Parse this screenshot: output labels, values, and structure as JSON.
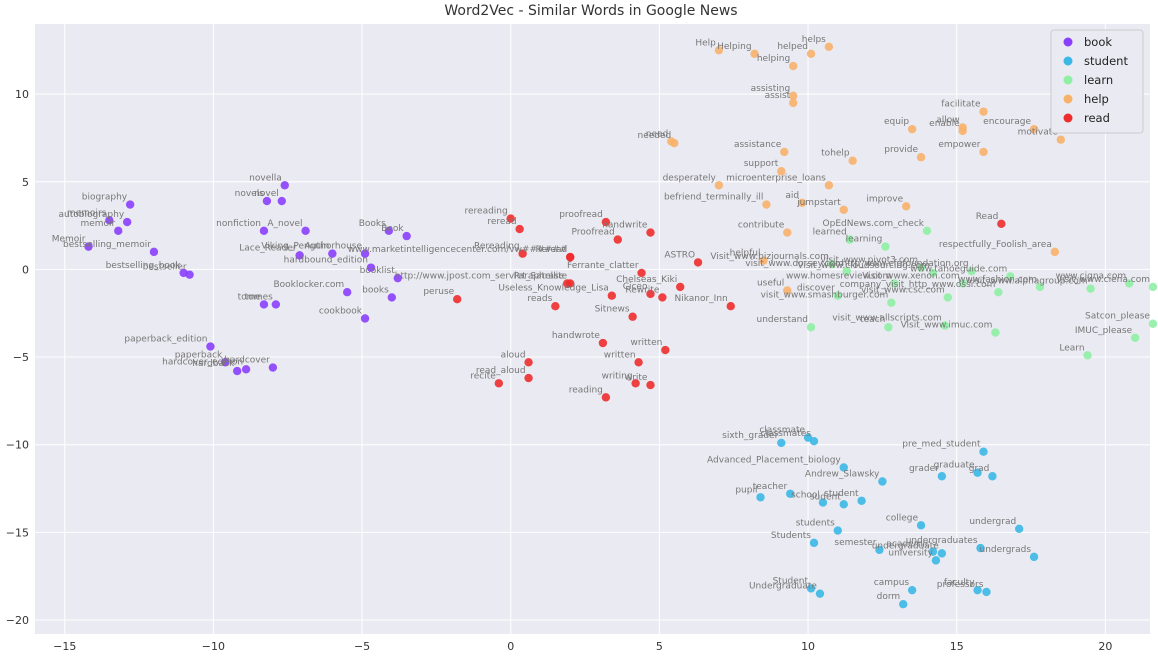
{
  "chart_data": {
    "type": "scatter",
    "title": "Word2Vec - Similar Words in Google News",
    "xlabel": "",
    "ylabel": "",
    "xlim": [
      -16,
      21.5
    ],
    "ylim": [
      -20.8,
      14.0
    ],
    "xticks": [
      -15,
      -10,
      -5,
      0,
      5,
      10,
      15,
      20
    ],
    "yticks": [
      -20,
      -15,
      -10,
      -5,
      0,
      5,
      10
    ],
    "grid": true,
    "background": "#eaeaf2",
    "legend_position": "top-right",
    "series": [
      {
        "name": "book",
        "color": "#8a3ffc",
        "points": [
          {
            "label": "biography",
            "x": -12.8,
            "y": 3.7
          },
          {
            "label": "memoirs",
            "x": -13.5,
            "y": 2.8
          },
          {
            "label": "autobiography",
            "x": -12.9,
            "y": 2.7
          },
          {
            "label": "memoir",
            "x": -13.2,
            "y": 2.2
          },
          {
            "label": "Memoir",
            "x": -14.2,
            "y": 1.3
          },
          {
            "label": "bestselling_memoir",
            "x": -12.0,
            "y": 1.0
          },
          {
            "label": "bestselling_book",
            "x": -11.0,
            "y": -0.2
          },
          {
            "label": "bestseller",
            "x": -10.8,
            "y": -0.3
          },
          {
            "label": "novella",
            "x": -7.6,
            "y": 4.8
          },
          {
            "label": "novel",
            "x": -7.7,
            "y": 3.9
          },
          {
            "label": "novels",
            "x": -8.2,
            "y": 3.9
          },
          {
            "label": "nonfiction",
            "x": -8.3,
            "y": 2.2
          },
          {
            "label": "A_novel",
            "x": -6.9,
            "y": 2.2
          },
          {
            "label": "Lace_Reader",
            "x": -7.1,
            "y": 0.8
          },
          {
            "label": "Viking_Penguin",
            "x": -6.0,
            "y": 0.9
          },
          {
            "label": "Authorhouse",
            "x": -4.9,
            "y": 0.9
          },
          {
            "label": "Booklocker.com",
            "x": -5.5,
            "y": -1.3
          },
          {
            "label": "hardbound_edition",
            "x": -4.7,
            "y": 0.1
          },
          {
            "label": "Books",
            "x": -4.1,
            "y": 2.2
          },
          {
            "label": "Book",
            "x": -3.5,
            "y": 1.9
          },
          {
            "label": "books",
            "x": -4.0,
            "y": -1.6
          },
          {
            "label": "booklist",
            "x": -3.8,
            "y": -0.5
          },
          {
            "label": "cookbook",
            "x": -4.9,
            "y": -2.8
          },
          {
            "label": "tome",
            "x": -8.3,
            "y": -2.0
          },
          {
            "label": "tomes",
            "x": -7.9,
            "y": -2.0
          },
          {
            "label": "paperback_edition",
            "x": -10.1,
            "y": -4.4
          },
          {
            "label": "paperback",
            "x": -9.6,
            "y": -5.3
          },
          {
            "label": "hardcover_edition",
            "x": -8.9,
            "y": -5.7
          },
          {
            "label": "hardback",
            "x": -9.2,
            "y": -5.8
          },
          {
            "label": "hardcover",
            "x": -8.0,
            "y": -5.6
          }
        ]
      },
      {
        "name": "student",
        "color": "#3bb8e6",
        "points": [
          {
            "label": "classmate",
            "x": 10.0,
            "y": -9.6
          },
          {
            "label": "classmates",
            "x": 10.2,
            "y": -9.8
          },
          {
            "label": "sixth_grader",
            "x": 9.1,
            "y": -9.9
          },
          {
            "label": "pre_med_student",
            "x": 15.9,
            "y": -10.4
          },
          {
            "label": "Advanced_Placement_biology",
            "x": 11.2,
            "y": -11.3
          },
          {
            "label": "Andrew_Slawsky",
            "x": 12.5,
            "y": -12.1
          },
          {
            "label": "grader",
            "x": 14.5,
            "y": -11.8
          },
          {
            "label": "graduate",
            "x": 15.7,
            "y": -11.6
          },
          {
            "label": "grad",
            "x": 16.2,
            "y": -11.8
          },
          {
            "label": "teacher",
            "x": 9.4,
            "y": -12.8
          },
          {
            "label": "pupil",
            "x": 8.4,
            "y": -13.0
          },
          {
            "label": "school",
            "x": 10.5,
            "y": -13.3
          },
          {
            "label": "student",
            "x": 11.8,
            "y": -13.2
          },
          {
            "label": "sudent",
            "x": 11.2,
            "y": -13.4
          },
          {
            "label": "college",
            "x": 13.8,
            "y": -14.6
          },
          {
            "label": "undergrad",
            "x": 17.1,
            "y": -14.8
          },
          {
            "label": "students",
            "x": 11.0,
            "y": -14.9
          },
          {
            "label": "Students",
            "x": 10.2,
            "y": -15.6
          },
          {
            "label": "semester",
            "x": 12.4,
            "y": -16.0
          },
          {
            "label": "undergraduate",
            "x": 14.5,
            "y": -16.2
          },
          {
            "label": "undergraduates",
            "x": 15.8,
            "y": -15.9
          },
          {
            "label": "academic",
            "x": 14.2,
            "y": -16.1
          },
          {
            "label": "university",
            "x": 14.3,
            "y": -16.6
          },
          {
            "label": "undergrads",
            "x": 17.6,
            "y": -16.4
          },
          {
            "label": "Student",
            "x": 10.1,
            "y": -18.2
          },
          {
            "label": "Undergraduate",
            "x": 10.4,
            "y": -18.5
          },
          {
            "label": "campus",
            "x": 13.5,
            "y": -18.3
          },
          {
            "label": "faculty",
            "x": 15.7,
            "y": -18.3
          },
          {
            "label": "professors",
            "x": 16.0,
            "y": -18.4
          },
          {
            "label": "dorm",
            "x": 13.2,
            "y": -19.1
          }
        ]
      },
      {
        "name": "learn",
        "color": "#8ff0a4",
        "points": [
          {
            "label": "learned",
            "x": 11.4,
            "y": 1.7
          },
          {
            "label": "learning",
            "x": 12.6,
            "y": 1.3
          },
          {
            "label": "OpEdNews.com_check",
            "x": 14.0,
            "y": 2.2
          },
          {
            "label": "Visit_www.bizjournals.com",
            "x": 10.8,
            "y": 0.3
          },
          {
            "label": "visit_www.dorsey.com",
            "x": 11.3,
            "y": -0.1
          },
          {
            "label": "visit_www.pivot3.com",
            "x": 13.8,
            "y": 0.1
          },
          {
            "label": "Visit_www.cloudsourcing.com",
            "x": 14.2,
            "y": -0.2
          },
          {
            "label": "http_www.cfgfoundation.org",
            "x": 15.5,
            "y": -0.1
          },
          {
            "label": "www.tahoeguide.com",
            "x": 16.8,
            "y": -0.4
          },
          {
            "label": "visit_www.ciena.com",
            "x": 21.6,
            "y": -1.0
          },
          {
            "label": "www.homesreview.com",
            "x": 12.9,
            "y": -0.8
          },
          {
            "label": "Visit_www.xenon.com",
            "x": 15.2,
            "y": -0.8
          },
          {
            "label": "www.fashion.com",
            "x": 17.8,
            "y": -1.0
          },
          {
            "label": "visit_www.alphagroup.com",
            "x": 19.5,
            "y": -1.1
          },
          {
            "label": "www.cigna.com",
            "x": 20.8,
            "y": -0.8
          },
          {
            "label": "discover",
            "x": 11.0,
            "y": -1.5
          },
          {
            "label": "visit_www.csc.com",
            "x": 14.7,
            "y": -1.6
          },
          {
            "label": "company_visit_http_www.ossi.com",
            "x": 16.4,
            "y": -1.3
          },
          {
            "label": "visit_www.smashburger.com",
            "x": 12.8,
            "y": -1.9
          },
          {
            "label": "understand",
            "x": 10.1,
            "y": -3.3
          },
          {
            "label": "teach",
            "x": 12.7,
            "y": -3.3
          },
          {
            "label": "visit_www.allscripts.com",
            "x": 14.6,
            "y": -3.2
          },
          {
            "label": "Visit_www.imuc.com",
            "x": 16.3,
            "y": -3.6
          },
          {
            "label": "Satcon_please",
            "x": 21.6,
            "y": -3.1
          },
          {
            "label": "IMUC_please",
            "x": 21.0,
            "y": -3.9
          },
          {
            "label": "Learn",
            "x": 19.4,
            "y": -4.9
          }
        ]
      },
      {
        "name": "help",
        "color": "#f7b16b",
        "points": [
          {
            "label": "Help",
            "x": 7.0,
            "y": 12.5
          },
          {
            "label": "Helping",
            "x": 8.2,
            "y": 12.3
          },
          {
            "label": "helping",
            "x": 9.5,
            "y": 11.6
          },
          {
            "label": "helped",
            "x": 10.1,
            "y": 12.3
          },
          {
            "label": "helps",
            "x": 10.7,
            "y": 12.7
          },
          {
            "label": "assisting",
            "x": 9.5,
            "y": 9.9
          },
          {
            "label": "assist",
            "x": 9.5,
            "y": 9.5
          },
          {
            "label": "facilitate",
            "x": 15.9,
            "y": 9.0
          },
          {
            "label": "equip",
            "x": 13.5,
            "y": 8.0
          },
          {
            "label": "allow",
            "x": 15.2,
            "y": 8.1
          },
          {
            "label": "enable",
            "x": 15.2,
            "y": 7.9
          },
          {
            "label": "encourage",
            "x": 17.6,
            "y": 8.0
          },
          {
            "label": "motivate",
            "x": 18.5,
            "y": 7.4
          },
          {
            "label": "need",
            "x": 5.4,
            "y": 7.3
          },
          {
            "label": "needed",
            "x": 5.5,
            "y": 7.2
          },
          {
            "label": "assistance",
            "x": 9.2,
            "y": 6.7
          },
          {
            "label": "provide",
            "x": 13.8,
            "y": 6.4
          },
          {
            "label": "empower",
            "x": 15.9,
            "y": 6.7
          },
          {
            "label": "support",
            "x": 9.1,
            "y": 5.6
          },
          {
            "label": "tohelp",
            "x": 11.5,
            "y": 6.2
          },
          {
            "label": "desperately",
            "x": 7.0,
            "y": 4.8
          },
          {
            "label": "microenterprise_loans",
            "x": 10.7,
            "y": 4.8
          },
          {
            "label": "befriend_terminally_ill",
            "x": 8.6,
            "y": 3.7
          },
          {
            "label": "aid",
            "x": 9.8,
            "y": 3.8
          },
          {
            "label": "jumpstart",
            "x": 11.2,
            "y": 3.4
          },
          {
            "label": "improve",
            "x": 13.3,
            "y": 3.6
          },
          {
            "label": "contribute",
            "x": 9.3,
            "y": 2.1
          },
          {
            "label": "helpful",
            "x": 8.5,
            "y": 0.5
          },
          {
            "label": "useful",
            "x": 9.3,
            "y": -1.2
          },
          {
            "label": "respectfully_Foolish_area",
            "x": 18.3,
            "y": 1.0
          }
        ]
      },
      {
        "name": "read",
        "color": "#ee2d2d",
        "points": [
          {
            "label": "Read",
            "x": 16.5,
            "y": 2.6
          },
          {
            "label": "rereading",
            "x": 0.0,
            "y": 2.9
          },
          {
            "label": "reread",
            "x": 0.3,
            "y": 2.3
          },
          {
            "label": "proofread",
            "x": 3.2,
            "y": 2.7
          },
          {
            "label": "Proofread",
            "x": 3.6,
            "y": 1.7
          },
          {
            "label": "handwrite",
            "x": 4.7,
            "y": 2.1
          },
          {
            "label": "Rereading",
            "x": 0.4,
            "y": 0.9
          },
          {
            "label": "Reread",
            "x": 2.0,
            "y": 0.7
          },
          {
            "label": "www.marketintelligencecenter.com/vw######",
            "x": 2.0,
            "y": 0.7
          },
          {
            "label": "ASTRO",
            "x": 6.3,
            "y": 0.4
          },
          {
            "label": "http://www.jpost.com_servlet_Satellite",
            "x": 2.0,
            "y": -0.8
          },
          {
            "label": "Ferrante_clatter",
            "x": 4.4,
            "y": -0.2
          },
          {
            "label": "Paraphrase",
            "x": 1.9,
            "y": -0.8
          },
          {
            "label": "Chelseas_Kiki",
            "x": 5.7,
            "y": -1.0
          },
          {
            "label": "Useless_Knowledge_Lisa",
            "x": 3.4,
            "y": -1.5
          },
          {
            "label": "reads",
            "x": 1.5,
            "y": -2.1
          },
          {
            "label": "Sitnews",
            "x": 4.1,
            "y": -2.7
          },
          {
            "label": "Nikanor_Inn",
            "x": 7.4,
            "y": -2.1
          },
          {
            "label": "Ciceo",
            "x": 4.7,
            "y": -1.4
          },
          {
            "label": "peruse",
            "x": -1.8,
            "y": -1.7
          },
          {
            "label": "handwrote",
            "x": 3.1,
            "y": -4.2
          },
          {
            "label": "written",
            "x": 5.2,
            "y": -4.6
          },
          {
            "label": "written",
            "x": 4.3,
            "y": -5.3
          },
          {
            "label": "aloud",
            "x": 0.6,
            "y": -5.3
          },
          {
            "label": "read_aloud",
            "x": 0.6,
            "y": -6.2
          },
          {
            "label": "recite",
            "x": -0.4,
            "y": -6.5
          },
          {
            "label": "writing",
            "x": 4.2,
            "y": -6.5
          },
          {
            "label": "write",
            "x": 4.7,
            "y": -6.6
          },
          {
            "label": "reading",
            "x": 3.2,
            "y": -7.3
          },
          {
            "label": "Rewrite",
            "x": 5.1,
            "y": -1.6
          }
        ]
      }
    ]
  }
}
